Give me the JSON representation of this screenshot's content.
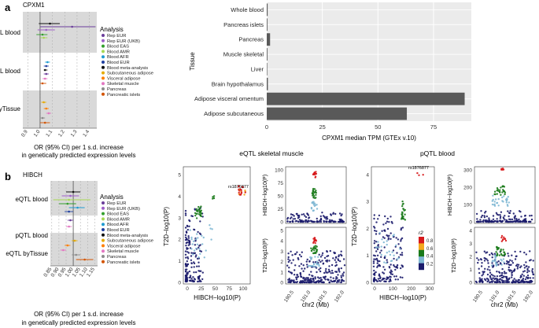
{
  "panel_a": {
    "letter": "a",
    "gene": "CPXM1",
    "forest": {
      "row_labels": [
        "eQTL blood",
        "pQTL blood",
        "eQTL byTissue"
      ],
      "x_ticks": [
        "0.9",
        "1.0",
        "1.1",
        "1.2",
        "1.3",
        "1.4"
      ],
      "legend_title": "Analysis",
      "legend": [
        {
          "label": "Rep EUR",
          "color": "#6a3d9a"
        },
        {
          "label": "Rep EUR (UKB)",
          "color": "#9e5fc9"
        },
        {
          "label": "Blood EAS",
          "color": "#33a02c"
        },
        {
          "label": "Blood AMR",
          "color": "#a6d854"
        },
        {
          "label": "Blood AFR",
          "color": "#1f9bd1"
        },
        {
          "label": "Blood EUR",
          "color": "#1f3fa0"
        },
        {
          "label": "Blood meta-analysis",
          "color": "#111111"
        },
        {
          "label": "Subcutaneous adipose",
          "color": "#e6ab02"
        },
        {
          "label": "Visceral adipose",
          "color": "#ff7f00"
        },
        {
          "label": "Skeletal muscle",
          "color": "#e377c2"
        },
        {
          "label": "Pancreas",
          "color": "#8c8c8c"
        },
        {
          "label": "Pancreatic islets",
          "color": "#d35400"
        }
      ],
      "xlabel_line1": "OR (95% CI) per 1 s.d. increase",
      "xlabel_line2": "in genetically predicted expression levels"
    },
    "bar": {
      "ylabel": "Tissue",
      "xlabel": "CPXM1 median TPM (GTEx v.10)",
      "x_ticks": [
        "0",
        "25",
        "50",
        "75"
      ],
      "categories": [
        "Whole blood",
        "Pancreas islets",
        "Pancreas",
        "Muscle skeletal",
        "Liver",
        "Brain hypothalamus",
        "Adipose visceral omentum",
        "Adipose subcutaneous"
      ]
    }
  },
  "panel_b": {
    "letter": "b",
    "gene": "HIBCH",
    "forest": {
      "row_labels": [
        "eQTL blood",
        "pQTL blood",
        "eQTL byTissue"
      ],
      "x_ticks": [
        "0.85",
        "0.90",
        "0.95",
        "1.00",
        "1.05",
        "1.10",
        "1.15"
      ],
      "legend_title": "Analysis",
      "legend": [
        {
          "label": "Rep EUR",
          "color": "#6a3d9a"
        },
        {
          "label": "Rep EUR (UKB)",
          "color": "#9e5fc9"
        },
        {
          "label": "Blood EAS",
          "color": "#33a02c"
        },
        {
          "label": "Blood AMR",
          "color": "#a6d854"
        },
        {
          "label": "Blood AFR",
          "color": "#1f9bd1"
        },
        {
          "label": "Blood EUR",
          "color": "#1f3fa0"
        },
        {
          "label": "Blood meta-analysis",
          "color": "#111111"
        },
        {
          "label": "Subcutaneous adipose",
          "color": "#e6ab02"
        },
        {
          "label": "Visceral adipose",
          "color": "#ff7f00"
        },
        {
          "label": "Skeletal muscle",
          "color": "#e377c2"
        },
        {
          "label": "Pancreas",
          "color": "#8c8c8c"
        },
        {
          "label": "Pancreatic islets",
          "color": "#d35400"
        }
      ],
      "xlabel_line1": "OR (95% CI) per 1 s.d. increase",
      "xlabel_line2": "in genetically predicted expression levels"
    },
    "skm": {
      "title": "eQTL skeletal muscle",
      "snp": "rs1876877",
      "scatter_ylabel": "T2D−log10(P)",
      "scatter_xlabel": "HIBCH−log10(P)",
      "scatter_yticks": [
        "0",
        "1",
        "2",
        "3",
        "4",
        "5"
      ],
      "scatter_xticks": [
        "0",
        "25",
        "50",
        "75",
        "100"
      ],
      "top_ylabel": "HIBCH−log10(P)",
      "top_yticks": [
        "0",
        "25",
        "50",
        "75",
        "100"
      ],
      "bot_ylabel": "T2D−log10(P)",
      "bot_yticks": [
        "0",
        "1",
        "2",
        "3",
        "4",
        "5"
      ],
      "chr_ticks": [
        "190.5",
        "191.0",
        "191.5",
        "192.0"
      ],
      "chr_label": "chr2 (Mb)"
    },
    "pqtl": {
      "title": "pQTL blood",
      "snp": "rs1876877",
      "scatter_ylabel": "T2D−log10(P)",
      "scatter_xlabel": "HIBCH−log10(P)",
      "scatter_yticks": [
        "0",
        "1",
        "2",
        "3",
        "4"
      ],
      "scatter_xticks": [
        "0",
        "100",
        "200",
        "300"
      ],
      "top_ylabel": "HIBCH−log10(P)",
      "top_yticks": [
        "0",
        "100",
        "200",
        "300"
      ],
      "bot_ylabel": "T2D−log10(P)",
      "bot_yticks": [
        "0",
        "1",
        "2",
        "3",
        "4"
      ],
      "chr_ticks": [
        "190.5",
        "191.0",
        "191.5",
        "192.0"
      ],
      "chr_label": "chr2 (Mb)"
    },
    "r2_legend": {
      "title": "r2",
      "ticks": [
        "0.8",
        "0.6",
        "0.4",
        "0.2"
      ],
      "colors": [
        "#d7191c",
        "#f4a81d",
        "#1a7a1a",
        "#7fb8d4",
        "#1b1b6b"
      ]
    }
  },
  "chart_data": [
    {
      "type": "bar",
      "title": "CPXM1 median TPM (GTEx v.10)",
      "xlabel": "CPXM1 median TPM (GTEx v.10)",
      "ylabel": "Tissue",
      "orientation": "horizontal",
      "categories": [
        "Whole blood",
        "Pancreas islets",
        "Pancreas",
        "Muscle skeletal",
        "Liver",
        "Brain hypothalamus",
        "Adipose visceral omentum",
        "Adipose subcutaneous"
      ],
      "values": [
        0.4,
        0.3,
        1.5,
        0.3,
        0.2,
        0.5,
        89,
        63
      ],
      "xlim": [
        0,
        92
      ]
    },
    {
      "type": "scatter",
      "title": "CPXM1 forest plot",
      "xlim": [
        0.88,
        1.45
      ],
      "series": [
        {
          "name": "Rep EUR",
          "x": [
            1.25
          ],
          "lo": [
            1.0
          ],
          "hi": [
            1.45
          ]
        },
        {
          "name": "Blood meta-analysis",
          "x": [
            1.08
          ],
          "lo": [
            0.99
          ],
          "hi": [
            1.16
          ]
        }
      ]
    }
  ]
}
